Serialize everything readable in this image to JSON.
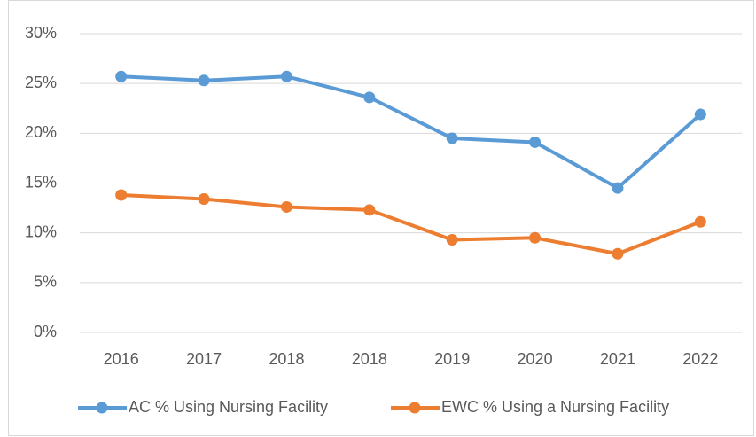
{
  "chart_data": {
    "type": "line",
    "categories": [
      "2016",
      "2017",
      "2018",
      "2018",
      "2019",
      "2020",
      "2021",
      "2022"
    ],
    "series": [
      {
        "name": "AC % Using Nursing Facility",
        "color": "#5b9bd5",
        "values": [
          25.7,
          25.3,
          25.7,
          23.6,
          19.5,
          19.1,
          14.5,
          21.9
        ]
      },
      {
        "name": "EWC % Using a Nursing Facility",
        "color": "#ed7d31",
        "values": [
          13.8,
          13.4,
          12.6,
          12.3,
          9.3,
          9.5,
          7.9,
          11.1
        ]
      }
    ],
    "ylim": [
      0,
      30
    ],
    "yticks": [
      {
        "value": 0,
        "label": "0%"
      },
      {
        "value": 5,
        "label": "5%"
      },
      {
        "value": 10,
        "label": "10%"
      },
      {
        "value": 15,
        "label": "15%"
      },
      {
        "value": 20,
        "label": "20%"
      },
      {
        "value": 25,
        "label": "25%"
      },
      {
        "value": 30,
        "label": "30%"
      }
    ],
    "grid": true,
    "legend": "bottom"
  }
}
